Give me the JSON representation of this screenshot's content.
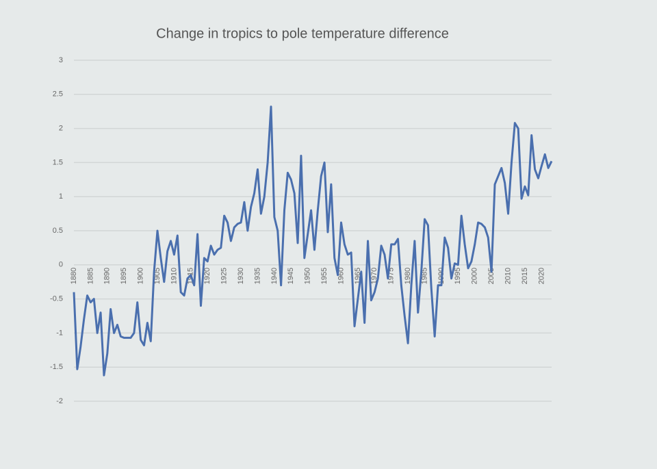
{
  "chart_data": {
    "type": "line",
    "title": "Change in tropics to pole temperature difference",
    "x": [
      1880,
      1881,
      1882,
      1883,
      1884,
      1885,
      1886,
      1887,
      1888,
      1889,
      1890,
      1891,
      1892,
      1893,
      1894,
      1895,
      1896,
      1897,
      1898,
      1899,
      1900,
      1901,
      1902,
      1903,
      1904,
      1905,
      1906,
      1907,
      1908,
      1909,
      1910,
      1911,
      1912,
      1913,
      1914,
      1915,
      1916,
      1917,
      1918,
      1919,
      1920,
      1921,
      1922,
      1923,
      1924,
      1925,
      1926,
      1927,
      1928,
      1929,
      1930,
      1931,
      1932,
      1933,
      1934,
      1935,
      1936,
      1937,
      1938,
      1939,
      1940,
      1941,
      1942,
      1943,
      1944,
      1945,
      1946,
      1947,
      1948,
      1949,
      1950,
      1951,
      1952,
      1953,
      1954,
      1955,
      1956,
      1957,
      1958,
      1959,
      1960,
      1961,
      1962,
      1963,
      1964,
      1965,
      1966,
      1967,
      1968,
      1969,
      1970,
      1971,
      1972,
      1973,
      1974,
      1975,
      1976,
      1977,
      1978,
      1979,
      1980,
      1981,
      1982,
      1983,
      1984,
      1985,
      1986,
      1987,
      1988,
      1989,
      1990,
      1991,
      1992,
      1993,
      1994,
      1995,
      1996,
      1997,
      1998,
      1999,
      2000,
      2001,
      2002,
      2003,
      2004,
      2005,
      2006,
      2007,
      2008,
      2009,
      2010,
      2011,
      2012,
      2013,
      2014,
      2015,
      2016,
      2017,
      2018,
      2019,
      2020,
      2021,
      2022,
      2023
    ],
    "values": [
      -0.4,
      -1.53,
      -1.2,
      -0.8,
      -0.45,
      -0.55,
      -0.5,
      -1.0,
      -0.7,
      -1.62,
      -1.3,
      -0.65,
      -1.0,
      -0.88,
      -1.05,
      -1.07,
      -1.07,
      -1.07,
      -1.0,
      -0.55,
      -1.1,
      -1.18,
      -0.85,
      -1.12,
      -0.1,
      0.5,
      0.1,
      -0.25,
      0.2,
      0.35,
      0.15,
      0.43,
      -0.4,
      -0.45,
      -0.2,
      -0.15,
      -0.3,
      0.45,
      -0.6,
      0.1,
      0.05,
      0.28,
      0.15,
      0.22,
      0.25,
      0.72,
      0.62,
      0.35,
      0.55,
      0.6,
      0.62,
      0.92,
      0.5,
      0.85,
      1.05,
      1.4,
      0.75,
      1.0,
      1.5,
      2.32,
      0.7,
      0.5,
      -0.3,
      0.8,
      1.35,
      1.25,
      1.05,
      0.32,
      1.6,
      0.1,
      0.45,
      0.8,
      0.22,
      0.8,
      1.3,
      1.5,
      0.48,
      1.18,
      0.1,
      -0.15,
      0.62,
      0.3,
      0.15,
      0.18,
      -0.9,
      -0.5,
      -0.1,
      -0.85,
      0.35,
      -0.52,
      -0.4,
      -0.2,
      0.28,
      0.15,
      -0.2,
      0.3,
      0.3,
      0.38,
      -0.3,
      -0.75,
      -1.15,
      -0.3,
      0.35,
      -0.7,
      -0.1,
      0.67,
      0.58,
      -0.35,
      -1.05,
      -0.3,
      -0.3,
      0.4,
      0.25,
      -0.2,
      0.02,
      0.0,
      0.72,
      0.3,
      -0.05,
      0.05,
      0.3,
      0.62,
      0.6,
      0.55,
      0.4,
      -0.1,
      1.18,
      1.3,
      1.42,
      1.2,
      0.75,
      1.5,
      2.08,
      2.0,
      0.97,
      1.15,
      1.02,
      1.9,
      1.4,
      1.27,
      1.45,
      1.62,
      1.42,
      1.52
    ],
    "color": "#4a6fae",
    "xlim": [
      1880,
      2023
    ],
    "xticks": [
      1880,
      1885,
      1890,
      1895,
      1900,
      1905,
      1910,
      1915,
      1920,
      1925,
      1930,
      1935,
      1940,
      1945,
      1950,
      1955,
      1960,
      1965,
      1970,
      1975,
      1980,
      1985,
      1990,
      1995,
      2000,
      2005,
      2010,
      2015,
      2020
    ],
    "ylim": [
      -2,
      3
    ],
    "yticks": [
      -2,
      -1.5,
      -1,
      -0.5,
      0,
      0.5,
      1,
      1.5,
      2,
      2.5,
      3
    ],
    "grid": true
  }
}
